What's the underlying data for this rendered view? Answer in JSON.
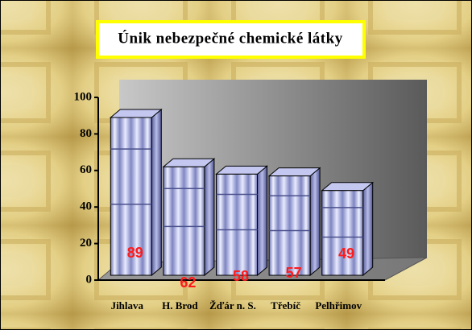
{
  "chart_data": {
    "type": "bar",
    "title": "Únik nebezpečné chemické látky",
    "categories": [
      "Jihlava",
      "H. Brod",
      "Žďár n. S.",
      "Třebíč",
      "Pelhřimov"
    ],
    "values": [
      89,
      62,
      58,
      57,
      49
    ],
    "color": "#8f96c8",
    "ylim": [
      0,
      100
    ],
    "yticks": [
      0,
      20,
      40,
      60,
      80,
      100
    ]
  }
}
